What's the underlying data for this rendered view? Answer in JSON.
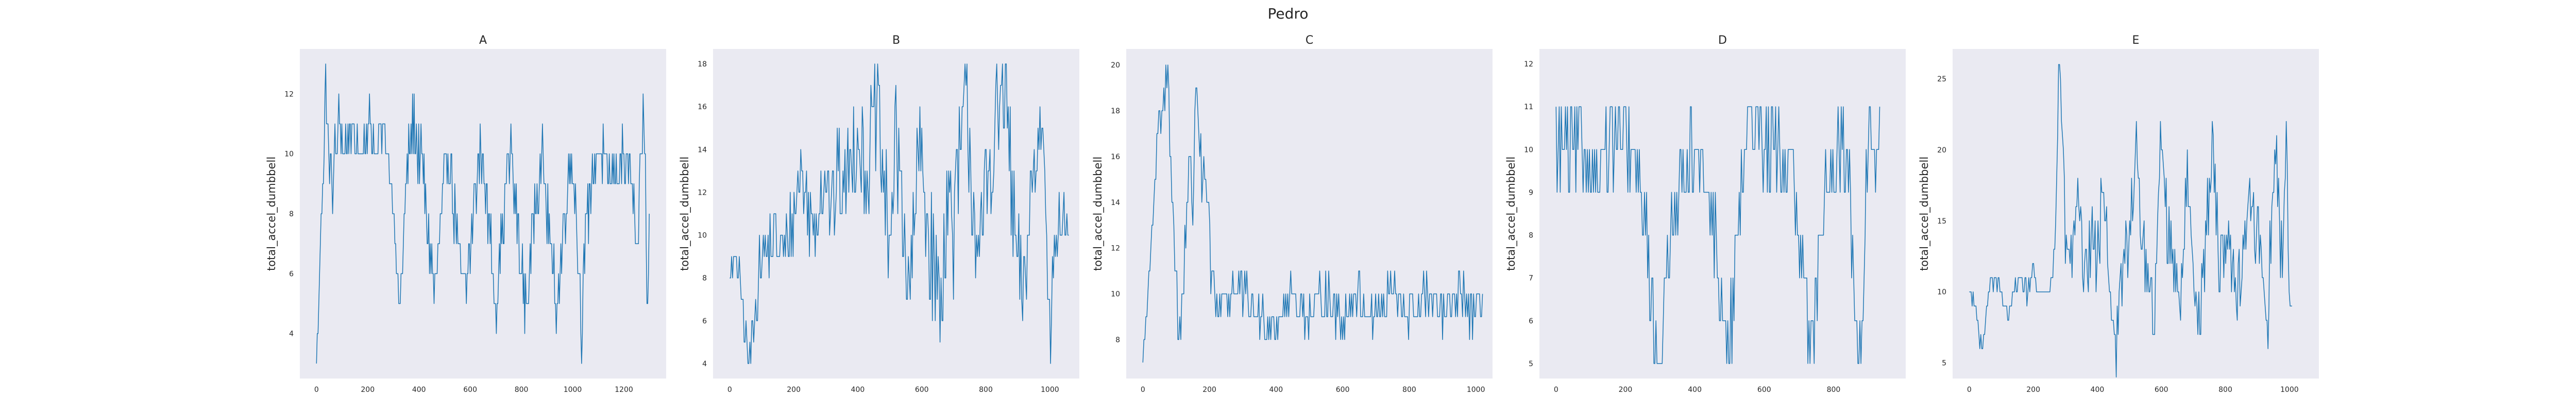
{
  "figure": {
    "title": "Pedro",
    "colors": {
      "line": "#1f77b4",
      "plot_bg": "#eaeaf2",
      "text": "#262626"
    }
  },
  "chart_data": [
    {
      "type": "line",
      "title": "A",
      "xlabel": "",
      "ylabel": "total_accel_dumbbell",
      "xlim": [
        -65,
        1365
      ],
      "ylim": [
        2.5,
        13.5
      ],
      "xticks": [
        0,
        200,
        400,
        600,
        800,
        1000,
        1200
      ],
      "yticks": [
        4,
        6,
        8,
        10,
        12
      ],
      "grid": false,
      "anchors": [
        [
          0,
          3
        ],
        [
          10,
          5
        ],
        [
          18,
          8
        ],
        [
          25,
          9
        ],
        [
          30,
          10
        ],
        [
          33,
          12
        ],
        [
          36,
          13
        ],
        [
          40,
          11
        ],
        [
          48,
          10
        ],
        [
          60,
          9
        ],
        [
          75,
          10
        ],
        [
          90,
          11
        ],
        [
          110,
          10
        ],
        [
          130,
          11
        ],
        [
          170,
          10
        ],
        [
          200,
          11
        ],
        [
          240,
          10
        ],
        [
          260,
          11
        ],
        [
          280,
          10
        ],
        [
          300,
          8
        ],
        [
          315,
          6
        ],
        [
          325,
          5
        ],
        [
          340,
          7
        ],
        [
          350,
          9
        ],
        [
          360,
          10
        ],
        [
          380,
          11
        ],
        [
          400,
          10
        ],
        [
          420,
          9
        ],
        [
          440,
          7
        ],
        [
          460,
          5
        ],
        [
          480,
          7
        ],
        [
          500,
          9
        ],
        [
          520,
          10
        ],
        [
          540,
          8
        ],
        [
          560,
          6
        ],
        [
          580,
          5
        ],
        [
          600,
          7
        ],
        [
          620,
          9
        ],
        [
          640,
          10
        ],
        [
          660,
          9
        ],
        [
          680,
          7
        ],
        [
          700,
          5
        ],
        [
          720,
          7
        ],
        [
          740,
          9
        ],
        [
          760,
          10
        ],
        [
          780,
          8
        ],
        [
          800,
          6
        ],
        [
          820,
          5
        ],
        [
          840,
          7
        ],
        [
          860,
          9
        ],
        [
          880,
          10
        ],
        [
          900,
          8
        ],
        [
          920,
          6
        ],
        [
          940,
          5
        ],
        [
          960,
          7
        ],
        [
          980,
          9
        ],
        [
          1000,
          10
        ],
        [
          1020,
          7
        ],
        [
          1035,
          4
        ],
        [
          1050,
          7
        ],
        [
          1070,
          9
        ],
        [
          1100,
          10
        ],
        [
          1150,
          9
        ],
        [
          1200,
          10
        ],
        [
          1230,
          9
        ],
        [
          1250,
          6
        ],
        [
          1265,
          10
        ],
        [
          1275,
          11
        ],
        [
          1285,
          9
        ],
        [
          1292,
          4
        ],
        [
          1300,
          8
        ]
      ],
      "amplitude": [
        [
          0,
          0
        ],
        [
          35,
          0
        ],
        [
          60,
          1
        ],
        [
          120,
          1
        ],
        [
          180,
          0
        ],
        [
          210,
          1
        ],
        [
          270,
          0.5
        ],
        [
          300,
          0
        ],
        [
          360,
          1
        ],
        [
          1290,
          1
        ],
        [
          1300,
          0
        ]
      ],
      "step": 3
    },
    {
      "type": "line",
      "title": "B",
      "xlabel": "",
      "ylabel": "total_accel_dumbbell",
      "xlim": [
        -52,
        1092
      ],
      "ylim": [
        3.3,
        18.7
      ],
      "xticks": [
        0,
        200,
        400,
        600,
        800,
        1000
      ],
      "yticks": [
        4,
        6,
        8,
        10,
        12,
        14,
        16,
        18
      ],
      "grid": false,
      "anchors": [
        [
          0,
          8
        ],
        [
          20,
          9
        ],
        [
          40,
          7
        ],
        [
          50,
          5
        ],
        [
          60,
          4
        ],
        [
          70,
          5
        ],
        [
          80,
          7
        ],
        [
          100,
          9
        ],
        [
          140,
          10
        ],
        [
          170,
          9
        ],
        [
          200,
          11
        ],
        [
          220,
          13
        ],
        [
          240,
          12
        ],
        [
          260,
          10
        ],
        [
          280,
          12
        ],
        [
          300,
          13
        ],
        [
          320,
          11
        ],
        [
          340,
          13
        ],
        [
          360,
          12
        ],
        [
          380,
          14
        ],
        [
          400,
          15
        ],
        [
          420,
          13
        ],
        [
          440,
          14
        ],
        [
          460,
          16
        ],
        [
          480,
          12
        ],
        [
          500,
          10
        ],
        [
          520,
          14
        ],
        [
          540,
          12
        ],
        [
          560,
          6
        ],
        [
          580,
          12
        ],
        [
          600,
          14
        ],
        [
          620,
          10
        ],
        [
          640,
          8
        ],
        [
          660,
          7
        ],
        [
          680,
          12
        ],
        [
          700,
          10
        ],
        [
          720,
          14
        ],
        [
          740,
          16
        ],
        [
          760,
          12
        ],
        [
          780,
          8
        ],
        [
          800,
          12
        ],
        [
          820,
          14
        ],
        [
          840,
          16
        ],
        [
          860,
          17
        ],
        [
          880,
          12
        ],
        [
          900,
          8
        ],
        [
          920,
          7
        ],
        [
          940,
          12
        ],
        [
          960,
          14
        ],
        [
          980,
          16
        ],
        [
          1000,
          5
        ],
        [
          1010,
          8
        ],
        [
          1020,
          10
        ],
        [
          1040,
          11
        ],
        [
          1060,
          10
        ]
      ],
      "amplitude": [
        [
          0,
          0.5
        ],
        [
          100,
          1.5
        ],
        [
          300,
          2
        ],
        [
          500,
          3
        ],
        [
          900,
          3
        ],
        [
          1000,
          1.5
        ],
        [
          1060,
          1
        ]
      ],
      "step": 3
    },
    {
      "type": "line",
      "title": "C",
      "xlabel": "",
      "ylabel": "total_accel_dumbbell",
      "xlim": [
        -50,
        1050
      ],
      "ylim": [
        6.3,
        20.7
      ],
      "xticks": [
        0,
        200,
        400,
        600,
        800,
        1000
      ],
      "yticks": [
        8,
        10,
        12,
        14,
        16,
        18,
        20
      ],
      "grid": false,
      "anchors": [
        [
          0,
          7
        ],
        [
          10,
          9
        ],
        [
          20,
          11
        ],
        [
          30,
          13
        ],
        [
          40,
          16
        ],
        [
          50,
          18
        ],
        [
          60,
          17
        ],
        [
          70,
          20
        ],
        [
          80,
          18
        ],
        [
          90,
          14
        ],
        [
          100,
          10
        ],
        [
          110,
          8
        ],
        [
          120,
          10
        ],
        [
          130,
          14
        ],
        [
          140,
          15
        ],
        [
          150,
          14
        ],
        [
          160,
          20
        ],
        [
          170,
          17
        ],
        [
          180,
          14
        ],
        [
          190,
          15
        ],
        [
          200,
          12
        ],
        [
          210,
          10
        ],
        [
          220,
          9
        ],
        [
          240,
          10
        ],
        [
          300,
          10
        ],
        [
          350,
          9
        ],
        [
          400,
          9
        ],
        [
          450,
          10
        ],
        [
          500,
          9
        ],
        [
          550,
          10
        ],
        [
          600,
          9
        ],
        [
          650,
          10
        ],
        [
          700,
          9
        ],
        [
          750,
          10
        ],
        [
          800,
          9
        ],
        [
          850,
          10
        ],
        [
          900,
          9
        ],
        [
          950,
          10
        ],
        [
          1000,
          9
        ],
        [
          1020,
          9.5
        ]
      ],
      "amplitude": [
        [
          0,
          0
        ],
        [
          100,
          2
        ],
        [
          200,
          1.5
        ],
        [
          240,
          1
        ],
        [
          1020,
          1
        ]
      ],
      "step": 3
    },
    {
      "type": "line",
      "title": "D",
      "xlabel": "",
      "ylabel": "total_accel_dumbbell",
      "xlim": [
        -48,
        1008
      ],
      "ylim": [
        4.65,
        12.35
      ],
      "xticks": [
        0,
        200,
        400,
        600,
        800
      ],
      "yticks": [
        5,
        6,
        7,
        8,
        9,
        10,
        11,
        12
      ],
      "grid": false,
      "anchors": [
        [
          0,
          10
        ],
        [
          40,
          10
        ],
        [
          80,
          10
        ],
        [
          120,
          9.5
        ],
        [
          160,
          10
        ],
        [
          200,
          10
        ],
        [
          240,
          9.5
        ],
        [
          260,
          8
        ],
        [
          280,
          6
        ],
        [
          300,
          5
        ],
        [
          320,
          7
        ],
        [
          340,
          9
        ],
        [
          380,
          10
        ],
        [
          420,
          9.5
        ],
        [
          460,
          8
        ],
        [
          480,
          6
        ],
        [
          500,
          5
        ],
        [
          520,
          8
        ],
        [
          550,
          10
        ],
        [
          580,
          11
        ],
        [
          600,
          10
        ],
        [
          640,
          10
        ],
        [
          680,
          9.5
        ],
        [
          700,
          8
        ],
        [
          720,
          6
        ],
        [
          740,
          5
        ],
        [
          760,
          8
        ],
        [
          800,
          10
        ],
        [
          840,
          9.5
        ],
        [
          860,
          7
        ],
        [
          870,
          6
        ],
        [
          880,
          5
        ],
        [
          890,
          8
        ],
        [
          900,
          10
        ],
        [
          920,
          10
        ],
        [
          935,
          10
        ]
      ],
      "amplitude": [
        [
          0,
          1
        ],
        [
          935,
          1
        ]
      ],
      "step": 3
    },
    {
      "type": "line",
      "title": "E",
      "xlabel": "",
      "ylabel": "total_accel_dumbbell",
      "xlim": [
        -52,
        1092
      ],
      "ylim": [
        3.9,
        27.1
      ],
      "xticks": [
        0,
        200,
        400,
        600,
        800,
        1000
      ],
      "yticks": [
        5,
        10,
        15,
        20,
        25
      ],
      "grid": false,
      "anchors": [
        [
          0,
          10
        ],
        [
          10,
          10
        ],
        [
          20,
          9
        ],
        [
          30,
          7
        ],
        [
          40,
          6
        ],
        [
          50,
          8
        ],
        [
          60,
          10
        ],
        [
          80,
          11
        ],
        [
          100,
          10
        ],
        [
          120,
          8
        ],
        [
          140,
          10
        ],
        [
          160,
          11
        ],
        [
          180,
          10
        ],
        [
          200,
          11
        ],
        [
          220,
          10
        ],
        [
          240,
          10
        ],
        [
          260,
          11
        ],
        [
          270,
          15
        ],
        [
          280,
          26
        ],
        [
          290,
          22
        ],
        [
          300,
          14
        ],
        [
          320,
          12
        ],
        [
          340,
          16
        ],
        [
          360,
          10
        ],
        [
          380,
          14
        ],
        [
          400,
          12
        ],
        [
          420,
          18
        ],
        [
          440,
          10
        ],
        [
          460,
          6
        ],
        [
          480,
          12
        ],
        [
          500,
          14
        ],
        [
          520,
          20
        ],
        [
          540,
          14
        ],
        [
          560,
          10
        ],
        [
          580,
          8
        ],
        [
          600,
          22
        ],
        [
          620,
          14
        ],
        [
          640,
          12
        ],
        [
          660,
          10
        ],
        [
          680,
          18
        ],
        [
          700,
          12
        ],
        [
          720,
          8
        ],
        [
          740,
          14
        ],
        [
          760,
          20
        ],
        [
          780,
          12
        ],
        [
          800,
          14
        ],
        [
          820,
          12
        ],
        [
          840,
          10
        ],
        [
          860,
          14
        ],
        [
          880,
          16
        ],
        [
          900,
          14
        ],
        [
          920,
          12
        ],
        [
          930,
          6
        ],
        [
          940,
          14
        ],
        [
          960,
          20
        ],
        [
          970,
          14
        ],
        [
          980,
          12
        ],
        [
          990,
          22
        ],
        [
          1000,
          10
        ],
        [
          1010,
          8
        ]
      ],
      "amplitude": [
        [
          0,
          0.5
        ],
        [
          260,
          0.7
        ],
        [
          300,
          2.5
        ],
        [
          1010,
          2.5
        ]
      ],
      "step": 3
    }
  ]
}
